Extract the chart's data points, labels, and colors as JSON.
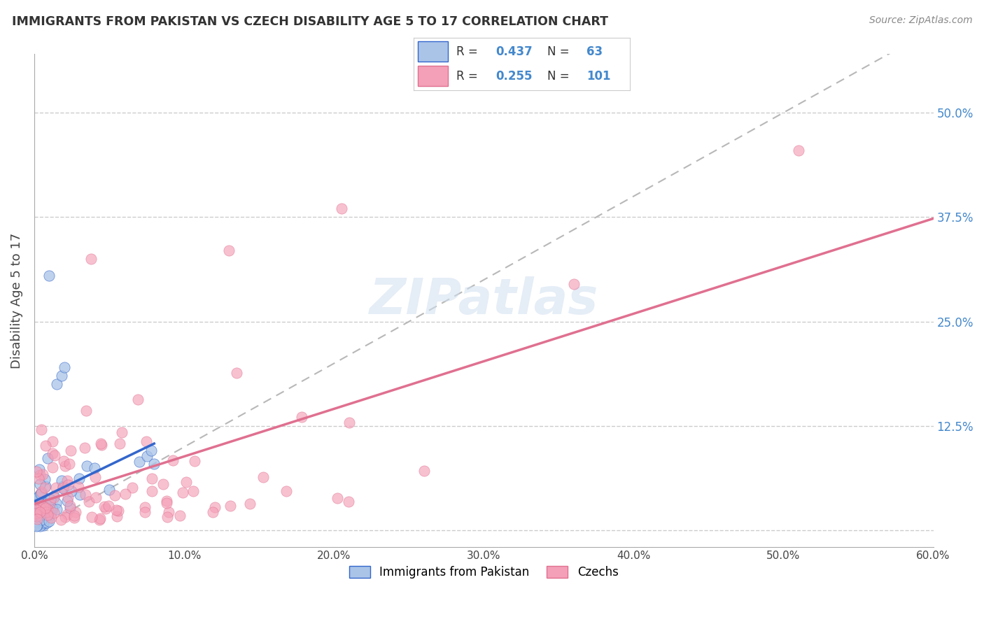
{
  "title": "IMMIGRANTS FROM PAKISTAN VS CZECH DISABILITY AGE 5 TO 17 CORRELATION CHART",
  "source": "Source: ZipAtlas.com",
  "ylabel": "Disability Age 5 to 17",
  "xlim": [
    0.0,
    0.6
  ],
  "ylim": [
    -0.02,
    0.57
  ],
  "ytick_vals": [
    0.0,
    0.125,
    0.25,
    0.375,
    0.5
  ],
  "right_ytick_vals": [
    0.125,
    0.25,
    0.375,
    0.5
  ],
  "right_ytick_labels": [
    "12.5%",
    "25.0%",
    "37.5%",
    "50.0%"
  ],
  "xtick_vals": [
    0.0,
    0.1,
    0.2,
    0.3,
    0.4,
    0.5,
    0.6
  ],
  "xtick_labels": [
    "0.0%",
    "10.0%",
    "20.0%",
    "30.0%",
    "40.0%",
    "50.0%",
    "60.0%"
  ],
  "legend_r1": "0.437",
  "legend_n1": "63",
  "legend_r2": "0.255",
  "legend_n2": "101",
  "color_pakistan": "#aac4e8",
  "color_czechs": "#f4a0b8",
  "color_pakistan_line": "#3366cc",
  "color_czechs_line": "#e07090",
  "color_diagonal": "#b8b8b8",
  "background_color": "#ffffff",
  "grid_color": "#cccccc",
  "watermark": "ZIPatlas",
  "label_pakistan": "Immigrants from Pakistan",
  "label_czechs": "Czechs"
}
